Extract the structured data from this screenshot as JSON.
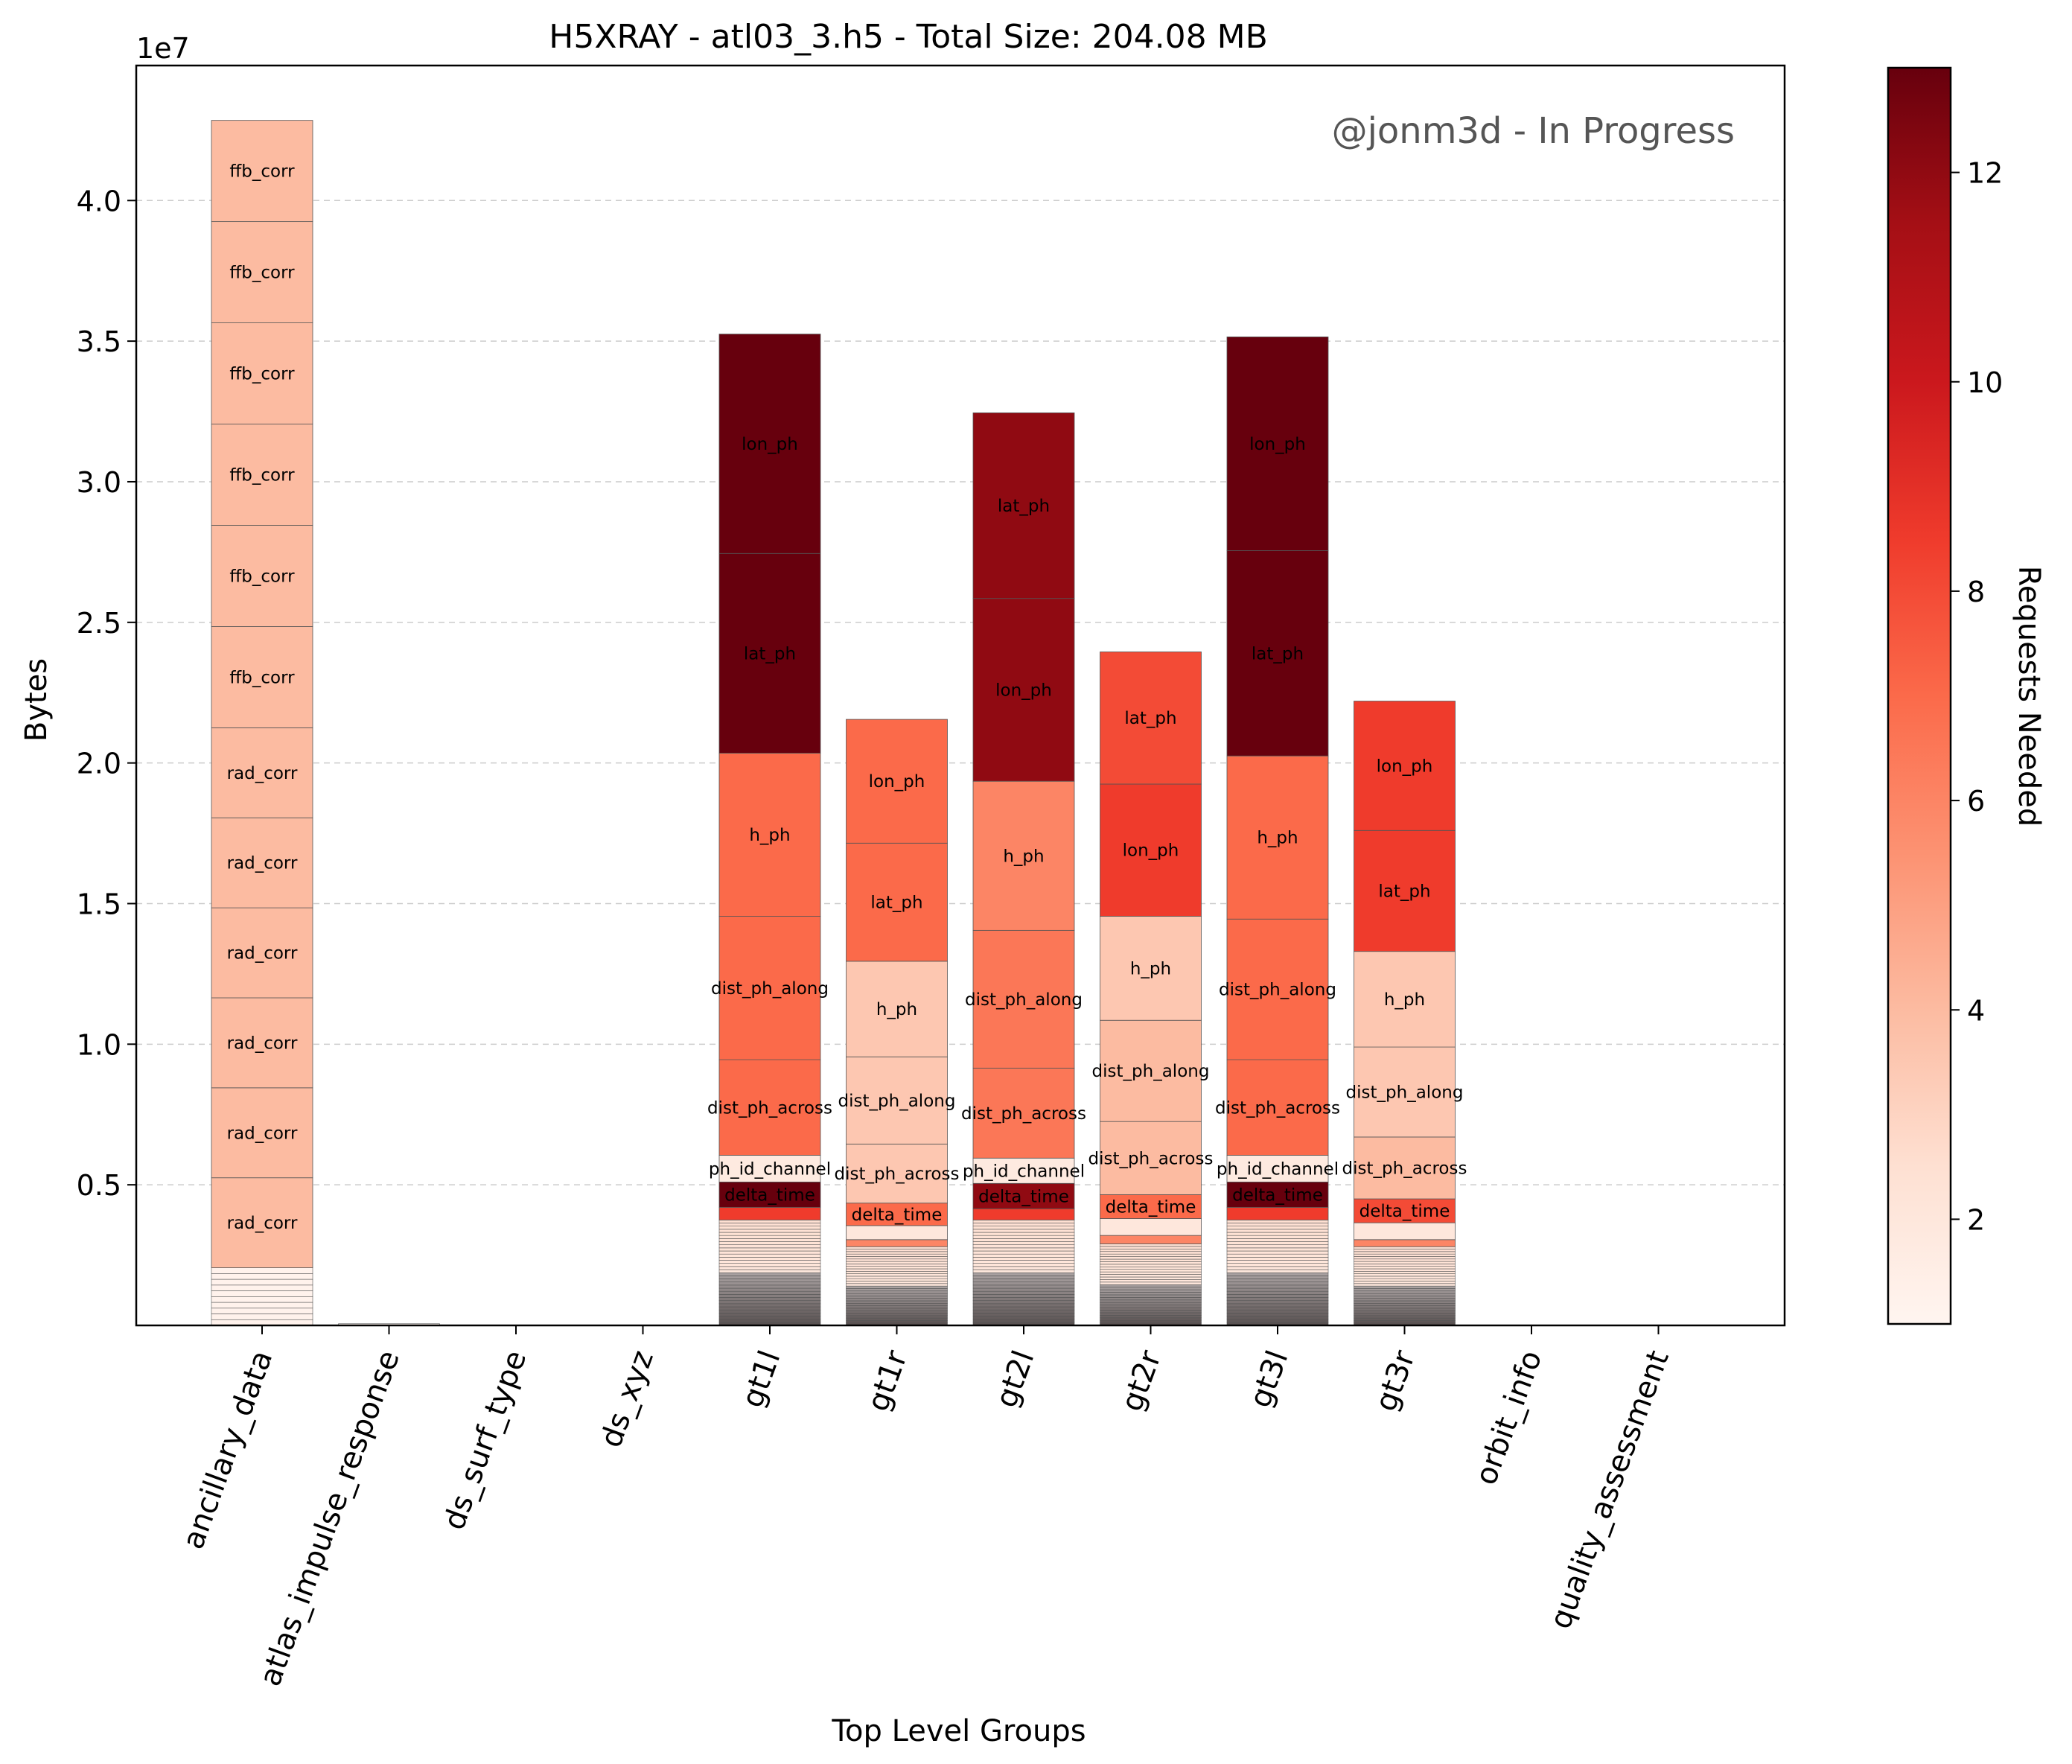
{
  "chart_data": {
    "type": "bar",
    "stacked": true,
    "title": "H5XRAY - atl03_3.h5 - Total Size: 204.08 MB",
    "xlabel": "Top Level Groups",
    "ylabel": "Bytes",
    "y_offset_label": "1e7",
    "y_scale": 10000000,
    "ylim": [
      0,
      44800000
    ],
    "yticks": [
      0.5,
      1.0,
      1.5,
      2.0,
      2.5,
      3.0,
      3.5,
      4.0
    ],
    "grid": "y",
    "watermark": "@jonm3d - In Progress",
    "categories": [
      "ancillary_data",
      "atlas_impulse_response",
      "ds_surf_type",
      "ds_xyz",
      "gt1l",
      "gt1r",
      "gt2l",
      "gt2r",
      "gt3l",
      "gt3r",
      "orbit_info",
      "quality_assessment"
    ],
    "colorbar": {
      "label": "Requests Needed",
      "range": [
        1,
        13
      ],
      "ticks": [
        2,
        4,
        6,
        8,
        10,
        12
      ],
      "colormap": "Reds"
    },
    "bars": [
      {
        "group": "ancillary_data",
        "small_segments": [
          {
            "bytes": 2050000,
            "requests": 1.2,
            "count": 10
          }
        ],
        "segments": [
          {
            "label": "rad_corr",
            "bytes": 3200000,
            "requests": 4
          },
          {
            "label": "rad_corr",
            "bytes": 3200000,
            "requests": 4
          },
          {
            "label": "rad_corr",
            "bytes": 3200000,
            "requests": 4
          },
          {
            "label": "rad_corr",
            "bytes": 3200000,
            "requests": 4
          },
          {
            "label": "rad_corr",
            "bytes": 3200000,
            "requests": 4
          },
          {
            "label": "rad_corr",
            "bytes": 3200000,
            "requests": 4
          },
          {
            "label": "ffb_corr",
            "bytes": 3600000,
            "requests": 4
          },
          {
            "label": "ffb_corr",
            "bytes": 3600000,
            "requests": 4
          },
          {
            "label": "ffb_corr",
            "bytes": 3600000,
            "requests": 4
          },
          {
            "label": "ffb_corr",
            "bytes": 3600000,
            "requests": 4
          },
          {
            "label": "ffb_corr",
            "bytes": 3600000,
            "requests": 4
          },
          {
            "label": "ffb_corr",
            "bytes": 3600000,
            "requests": 4
          }
        ]
      },
      {
        "group": "atlas_impulse_response",
        "small_segments": [
          {
            "bytes": 60000,
            "requests": 1,
            "count": 1
          }
        ],
        "segments": []
      },
      {
        "group": "ds_surf_type",
        "small_segments": [],
        "segments": []
      },
      {
        "group": "ds_xyz",
        "small_segments": [],
        "segments": []
      },
      {
        "group": "gt1l",
        "small_segments": [
          {
            "bytes": 3750000,
            "requests": 1.5,
            "count": 34
          }
        ],
        "segments": [
          {
            "label": "",
            "bytes": 450000,
            "requests": 8.5
          },
          {
            "label": "delta_time",
            "bytes": 900000,
            "requests": 13
          },
          {
            "label": "ph_id_channel",
            "bytes": 950000,
            "requests": 1.8
          },
          {
            "label": "dist_ph_across",
            "bytes": 3400000,
            "requests": 7
          },
          {
            "label": "dist_ph_along",
            "bytes": 5100000,
            "requests": 7
          },
          {
            "label": "h_ph",
            "bytes": 5800000,
            "requests": 7
          },
          {
            "label": "lat_ph",
            "bytes": 7100000,
            "requests": 13
          },
          {
            "label": "lon_ph",
            "bytes": 7800000,
            "requests": 13
          }
        ]
      },
      {
        "group": "gt1r",
        "small_segments": [
          {
            "bytes": 2800000,
            "requests": 1.5,
            "count": 32
          }
        ],
        "segments": [
          {
            "label": "",
            "bytes": 250000,
            "requests": 6
          },
          {
            "label": "",
            "bytes": 500000,
            "requests": 2
          },
          {
            "label": "delta_time",
            "bytes": 800000,
            "requests": 7
          },
          {
            "label": "dist_ph_across",
            "bytes": 2100000,
            "requests": 3.5
          },
          {
            "label": "dist_ph_along",
            "bytes": 3100000,
            "requests": 3.5
          },
          {
            "label": "h_ph",
            "bytes": 3400000,
            "requests": 3.5
          },
          {
            "label": "lat_ph",
            "bytes": 4200000,
            "requests": 7
          },
          {
            "label": "lon_ph",
            "bytes": 4400000,
            "requests": 7
          }
        ]
      },
      {
        "group": "gt2l",
        "small_segments": [
          {
            "bytes": 3750000,
            "requests": 1.5,
            "count": 34
          }
        ],
        "segments": [
          {
            "label": "",
            "bytes": 400000,
            "requests": 8.5
          },
          {
            "label": "delta_time",
            "bytes": 900000,
            "requests": 12
          },
          {
            "label": "ph_id_channel",
            "bytes": 900000,
            "requests": 1.8
          },
          {
            "label": "dist_ph_across",
            "bytes": 3200000,
            "requests": 6.5
          },
          {
            "label": "dist_ph_along",
            "bytes": 4900000,
            "requests": 6.5
          },
          {
            "label": "h_ph",
            "bytes": 5300000,
            "requests": 6
          },
          {
            "label": "lon_ph",
            "bytes": 6500000,
            "requests": 12
          },
          {
            "label": "lat_ph",
            "bytes": 6600000,
            "requests": 12
          }
        ]
      },
      {
        "group": "gt2r",
        "small_segments": [
          {
            "bytes": 2900000,
            "requests": 1.5,
            "count": 32
          }
        ],
        "segments": [
          {
            "label": "",
            "bytes": 300000,
            "requests": 6
          },
          {
            "label": "",
            "bytes": 600000,
            "requests": 2
          },
          {
            "label": "delta_time",
            "bytes": 850000,
            "requests": 7
          },
          {
            "label": "dist_ph_across",
            "bytes": 2600000,
            "requests": 4
          },
          {
            "label": "dist_ph_along",
            "bytes": 3600000,
            "requests": 4
          },
          {
            "label": "h_ph",
            "bytes": 3700000,
            "requests": 3.5
          },
          {
            "label": "lon_ph",
            "bytes": 4700000,
            "requests": 8.5
          },
          {
            "label": "lat_ph",
            "bytes": 4700000,
            "requests": 8
          }
        ]
      },
      {
        "group": "gt3l",
        "small_segments": [
          {
            "bytes": 3750000,
            "requests": 1.5,
            "count": 34
          }
        ],
        "segments": [
          {
            "label": "",
            "bytes": 450000,
            "requests": 8.5
          },
          {
            "label": "delta_time",
            "bytes": 900000,
            "requests": 13
          },
          {
            "label": "ph_id_channel",
            "bytes": 950000,
            "requests": 1.8
          },
          {
            "label": "dist_ph_across",
            "bytes": 3400000,
            "requests": 7
          },
          {
            "label": "dist_ph_along",
            "bytes": 5000000,
            "requests": 7
          },
          {
            "label": "h_ph",
            "bytes": 5800000,
            "requests": 7
          },
          {
            "label": "lat_ph",
            "bytes": 7300000,
            "requests": 13
          },
          {
            "label": "lon_ph",
            "bytes": 7600000,
            "requests": 13
          }
        ]
      },
      {
        "group": "gt3r",
        "small_segments": [
          {
            "bytes": 2800000,
            "requests": 1.5,
            "count": 32
          }
        ],
        "segments": [
          {
            "label": "",
            "bytes": 250000,
            "requests": 6
          },
          {
            "label": "",
            "bytes": 600000,
            "requests": 2
          },
          {
            "label": "delta_time",
            "bytes": 850000,
            "requests": 8
          },
          {
            "label": "dist_ph_across",
            "bytes": 2200000,
            "requests": 4
          },
          {
            "label": "dist_ph_along",
            "bytes": 3200000,
            "requests": 3.5
          },
          {
            "label": "h_ph",
            "bytes": 3400000,
            "requests": 3.5
          },
          {
            "label": "lat_ph",
            "bytes": 4300000,
            "requests": 8.5
          },
          {
            "label": "lon_ph",
            "bytes": 4600000,
            "requests": 8.5
          }
        ]
      },
      {
        "group": "orbit_info",
        "small_segments": [],
        "segments": []
      },
      {
        "group": "quality_assessment",
        "small_segments": [],
        "segments": []
      }
    ]
  }
}
